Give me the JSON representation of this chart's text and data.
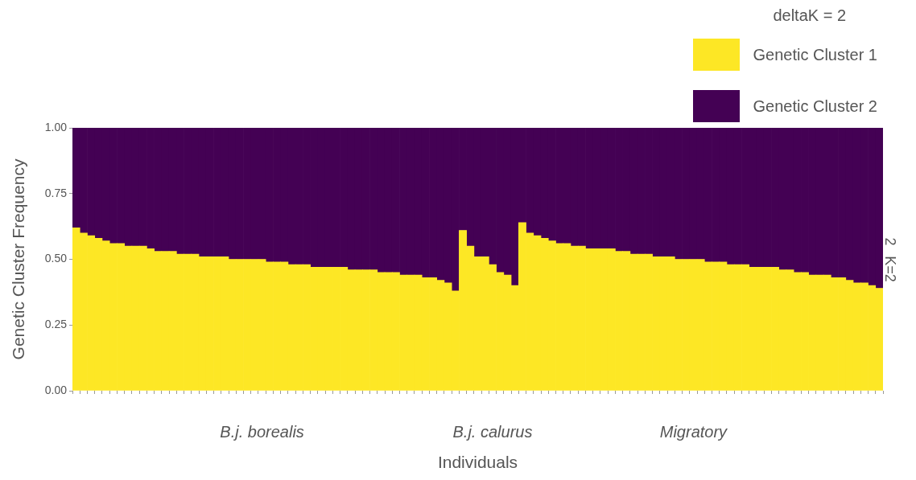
{
  "chart_data": {
    "type": "bar",
    "stacked": true,
    "xlabel": "Individuals",
    "ylabel": "Genetic Cluster Frequency",
    "legend_title": "deltaK = 2",
    "legend": "top right",
    "grid": false,
    "categories": [
      null,
      null,
      null,
      null,
      null,
      null,
      null,
      null,
      null,
      null,
      null,
      null,
      null,
      null,
      null,
      null,
      null,
      null,
      null,
      null,
      null,
      null,
      null,
      null,
      null,
      "B.j. borealis",
      null,
      null,
      null,
      null,
      null,
      null,
      null,
      null,
      null,
      null,
      null,
      null,
      null,
      null,
      null,
      null,
      null,
      null,
      null,
      null,
      null,
      null,
      null,
      null,
      null,
      null,
      null,
      null,
      null,
      null,
      "B.j. calurus",
      null,
      null,
      null,
      null,
      null,
      null,
      null,
      null,
      null,
      null,
      null,
      null,
      null,
      null,
      null,
      null,
      null,
      null,
      null,
      null,
      null,
      null,
      null,
      null,
      null,
      null,
      "Migratory",
      null,
      null,
      null,
      null,
      null,
      null,
      null,
      null,
      null,
      null,
      null,
      null,
      null,
      null,
      null,
      null,
      null,
      null,
      null,
      null,
      null,
      null,
      null,
      null,
      null
    ],
    "ylim": [
      0,
      1
    ],
    "yticks": [
      {
        "value": 0,
        "label": "0.00"
      },
      {
        "value": 0.25,
        "label": "0.25"
      },
      {
        "value": 0.5,
        "label": "0.50"
      },
      {
        "value": 0.75,
        "label": "0.75"
      },
      {
        "value": 1,
        "label": "1.00"
      }
    ],
    "annotations": [
      "2",
      "K=2"
    ],
    "series": [
      {
        "name": "Genetic Cluster 1",
        "color": "#fde725",
        "values": [
          0.62,
          0.6,
          0.59,
          0.58,
          0.57,
          0.56,
          0.56,
          0.55,
          0.55,
          0.55,
          0.54,
          0.53,
          0.53,
          0.53,
          0.52,
          0.52,
          0.52,
          0.51,
          0.51,
          0.51,
          0.51,
          0.5,
          0.5,
          0.5,
          0.5,
          0.5,
          0.49,
          0.49,
          0.49,
          0.48,
          0.48,
          0.48,
          0.47,
          0.47,
          0.47,
          0.47,
          0.47,
          0.46,
          0.46,
          0.46,
          0.46,
          0.45,
          0.45,
          0.45,
          0.44,
          0.44,
          0.44,
          0.43,
          0.43,
          0.42,
          0.41,
          0.38,
          0.61,
          0.55,
          0.51,
          0.51,
          0.48,
          0.45,
          0.44,
          0.4,
          0.64,
          0.6,
          0.59,
          0.58,
          0.57,
          0.56,
          0.56,
          0.55,
          0.55,
          0.54,
          0.54,
          0.54,
          0.54,
          0.53,
          0.53,
          0.52,
          0.52,
          0.52,
          0.51,
          0.51,
          0.51,
          0.5,
          0.5,
          0.5,
          0.5,
          0.49,
          0.49,
          0.49,
          0.48,
          0.48,
          0.48,
          0.47,
          0.47,
          0.47,
          0.47,
          0.46,
          0.46,
          0.45,
          0.45,
          0.44,
          0.44,
          0.44,
          0.43,
          0.43,
          0.42,
          0.41,
          0.41,
          0.4,
          0.39
        ]
      },
      {
        "name": "Genetic Cluster 2",
        "color": "#440154",
        "values": [
          0.38,
          0.4,
          0.41,
          0.42,
          0.43,
          0.44,
          0.44,
          0.45,
          0.45,
          0.45,
          0.46,
          0.47,
          0.47,
          0.47,
          0.48,
          0.48,
          0.48,
          0.49,
          0.49,
          0.49,
          0.49,
          0.5,
          0.5,
          0.5,
          0.5,
          0.5,
          0.51,
          0.51,
          0.51,
          0.52,
          0.52,
          0.52,
          0.53,
          0.53,
          0.53,
          0.53,
          0.53,
          0.54,
          0.54,
          0.54,
          0.54,
          0.55,
          0.55,
          0.55,
          0.56,
          0.56,
          0.56,
          0.57,
          0.57,
          0.58,
          0.59,
          0.62,
          0.39,
          0.45,
          0.49,
          0.49,
          0.52,
          0.55,
          0.56,
          0.6,
          0.36,
          0.4,
          0.41,
          0.42,
          0.43,
          0.44,
          0.44,
          0.45,
          0.45,
          0.46,
          0.46,
          0.46,
          0.46,
          0.47,
          0.47,
          0.48,
          0.48,
          0.48,
          0.49,
          0.49,
          0.49,
          0.5,
          0.5,
          0.5,
          0.5,
          0.51,
          0.51,
          0.51,
          0.52,
          0.52,
          0.52,
          0.53,
          0.53,
          0.53,
          0.53,
          0.54,
          0.54,
          0.55,
          0.55,
          0.56,
          0.56,
          0.56,
          0.57,
          0.57,
          0.58,
          0.59,
          0.59,
          0.6,
          0.61
        ]
      }
    ]
  }
}
